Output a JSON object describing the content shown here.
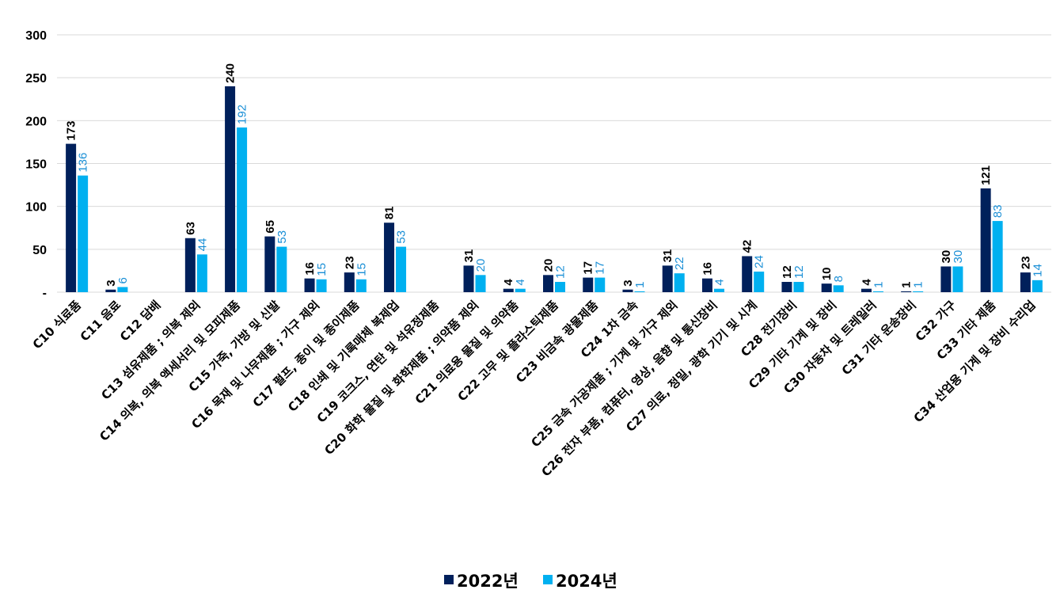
{
  "chart_data": {
    "type": "bar",
    "title": "",
    "xlabel": "",
    "ylabel": "",
    "ylim": [
      0,
      300
    ],
    "yticks": [
      0,
      50,
      100,
      150,
      200,
      250,
      300
    ],
    "ytick_labels": [
      "-",
      "50",
      "100",
      "150",
      "200",
      "250",
      "300"
    ],
    "grid": true,
    "legend_position": "bottom",
    "categories": [
      "C10 식료품",
      "C11 음료",
      "C12 담배",
      "C13 섬유제품 ; 의복 제외",
      "C14 의복, 의복 액세서리 및 모피제품",
      "C15 가죽, 가방 및 신발",
      "C16 목재 및 나무제품 ; 가구 제외",
      "C17 펄프, 종이 및 종이제품",
      "C18 인쇄 및 기록매체 복제업",
      "C19 코크스, 연탄 및 석유정제품",
      "C20 화학 물질 및 화학제품 ; 의약품 제외",
      "C21 의료용 물질 및 의약품",
      "C22 고무 및 플라스틱제품",
      "C23 비금속 광물제품",
      "C24 1차 금속",
      "C25 금속 가공제품 ; 기계 및 가구 제외",
      "C26 전자 부품, 컴퓨터, 영상, 음향 및 통신장비",
      "C27 의료, 정밀, 광학 기기 및 시계",
      "C28 전기장비",
      "C29 기타 기계 및 장비",
      "C30 자동차 및 트레일러",
      "C31 기타 운송장비",
      "C32 가구",
      "C33 기타 제품",
      "C34 산업용 기계 및 장비 수리업"
    ],
    "series": [
      {
        "name": "2022년",
        "color": "#00205b",
        "label_color": "#000000",
        "values": [
          173,
          3,
          null,
          63,
          240,
          65,
          16,
          23,
          81,
          null,
          31,
          4,
          20,
          17,
          3,
          31,
          16,
          42,
          12,
          10,
          4,
          1,
          30,
          121,
          23
        ]
      },
      {
        "name": "2024년",
        "color": "#00b0f0",
        "label_color": "#1a8fd6",
        "values": [
          136,
          6,
          null,
          44,
          192,
          53,
          15,
          15,
          53,
          null,
          20,
          4,
          12,
          17,
          1,
          22,
          4,
          24,
          12,
          8,
          1,
          1,
          30,
          83,
          14
        ]
      }
    ]
  }
}
